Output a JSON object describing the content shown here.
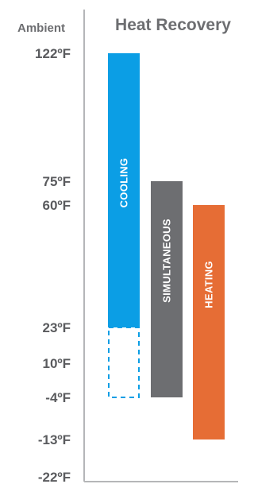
{
  "chart_data": {
    "type": "bar",
    "orientation": "vertical-range",
    "axis_title": "Ambient",
    "title": "Heat Recovery",
    "y_unit": "°F",
    "y_ticks": [
      {
        "value": 122,
        "label": "122ºF"
      },
      {
        "value": 75,
        "label": "75ºF"
      },
      {
        "value": 60,
        "label": "60ºF"
      },
      {
        "value": 23,
        "label": "23ºF"
      },
      {
        "value": 10,
        "label": "10ºF"
      },
      {
        "value": -4,
        "label": "-4ºF"
      },
      {
        "value": -13,
        "label": "-13ºF"
      },
      {
        "value": -22,
        "label": "-22ºF"
      }
    ],
    "ylim": [
      -22,
      122
    ],
    "grid": false,
    "series": [
      {
        "name": "COOLING",
        "color": "#0b9ee5",
        "low": 23,
        "high": 122,
        "extended_low": -4,
        "extended_style": "dashed"
      },
      {
        "name": "SIMULTANEOUS",
        "color": "#6d6e71",
        "low": -4,
        "high": 75
      },
      {
        "name": "HEATING",
        "color": "#e66d35",
        "low": -13,
        "high": 60
      }
    ]
  }
}
